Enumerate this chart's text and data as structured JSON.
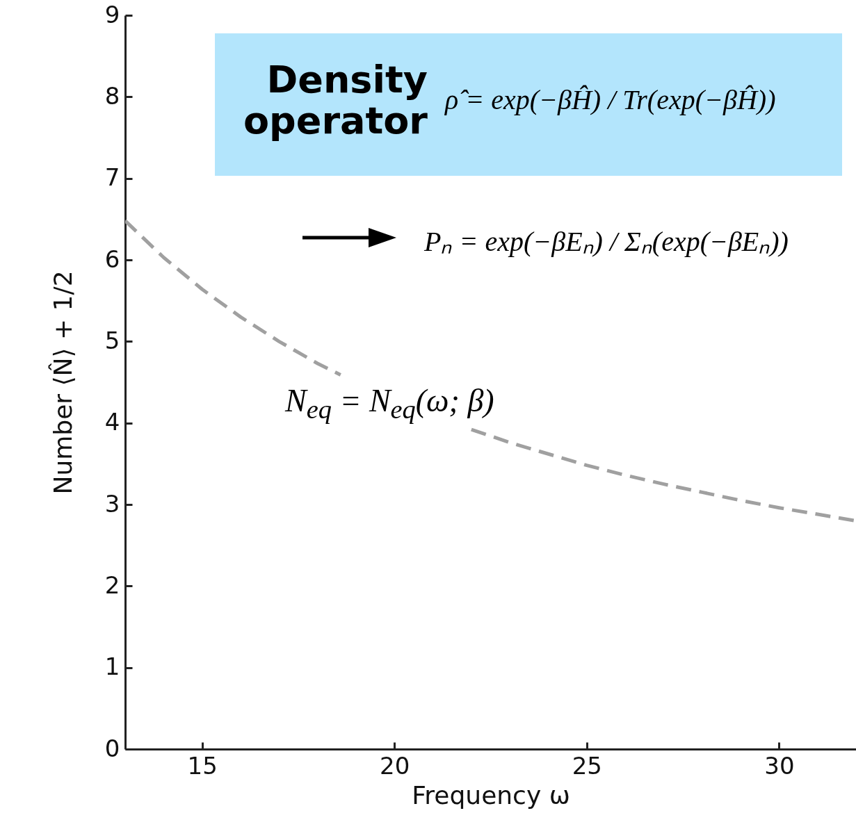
{
  "chart_data": {
    "type": "line",
    "xlabel": "Frequency    ω",
    "ylabel": "Number   ⟨N̂⟩ + 1/2",
    "x": [
      13,
      14,
      15,
      16,
      17,
      18,
      18.6,
      20,
      21,
      22,
      23,
      24,
      25,
      26,
      27,
      28,
      29,
      30,
      31,
      32
    ],
    "series": [
      {
        "color": "#a0a0a0",
        "line_style": "dashed",
        "values": [
          6.48,
          6.03,
          5.64,
          5.3,
          5.0,
          4.73,
          4.59,
          null,
          null,
          3.92,
          3.76,
          3.62,
          3.48,
          3.36,
          3.25,
          3.15,
          3.05,
          2.96,
          2.88,
          2.8
        ]
      }
    ],
    "xlim": [
      13,
      32
    ],
    "xticks": [
      15,
      20,
      25,
      30
    ],
    "ylim": [
      0,
      9
    ],
    "yticks": [
      0,
      1,
      2,
      3,
      4,
      5,
      6,
      7,
      8,
      9
    ],
    "grid": false,
    "marker": "none",
    "annotations": [
      "Density operator",
      "ρ̂ = exp(−βĤ) / Tr(exp(−βĤ))",
      "Pₙ = exp(−βEₙ) / Σₙ(exp(−βEₙ))",
      "N$_{eq}$ = N$_{eq}$(ω; β)"
    ]
  }
}
